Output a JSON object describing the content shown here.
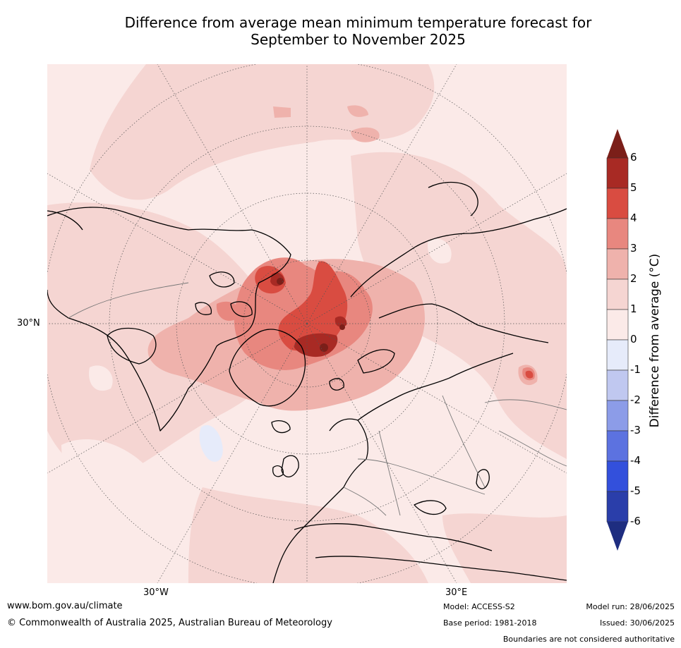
{
  "title_line1": "Difference from average mean minimum temperature forecast for",
  "title_line2": "September to November 2025",
  "labels": {
    "lat_30n": "30°N",
    "lon_30w": "30°W",
    "lon_30e": "30°E"
  },
  "colorbar": {
    "title": "Difference from average (°C)",
    "ticks": [
      "6",
      "5",
      "4",
      "3",
      "2",
      "1",
      "0",
      "-1",
      "-2",
      "-3",
      "-4",
      "-5",
      "-6"
    ],
    "colors_warm": [
      "#7b1f19",
      "#a82a24",
      "#d94c41",
      "#e8877f",
      "#efb2ac",
      "#f5d5d2",
      "#fbeae8"
    ],
    "colors_cool": [
      "#e6ebfa",
      "#c0c8f0",
      "#8c9ce8",
      "#5c72e0",
      "#3350dc",
      "#2a3eaa",
      "#1e2d80"
    ]
  },
  "footer": {
    "url": "www.bom.gov.au/climate",
    "copyright": "© Commonwealth of Australia 2025, Australian Bureau of Meteorology",
    "model": "Model: ACCESS-S2",
    "base_period": "Base period: 1981-2018",
    "model_run": "Model run: 28/06/2025",
    "issued": "Issued: 30/06/2025",
    "disclaimer": "Boundaries are not considered authoritative"
  }
}
